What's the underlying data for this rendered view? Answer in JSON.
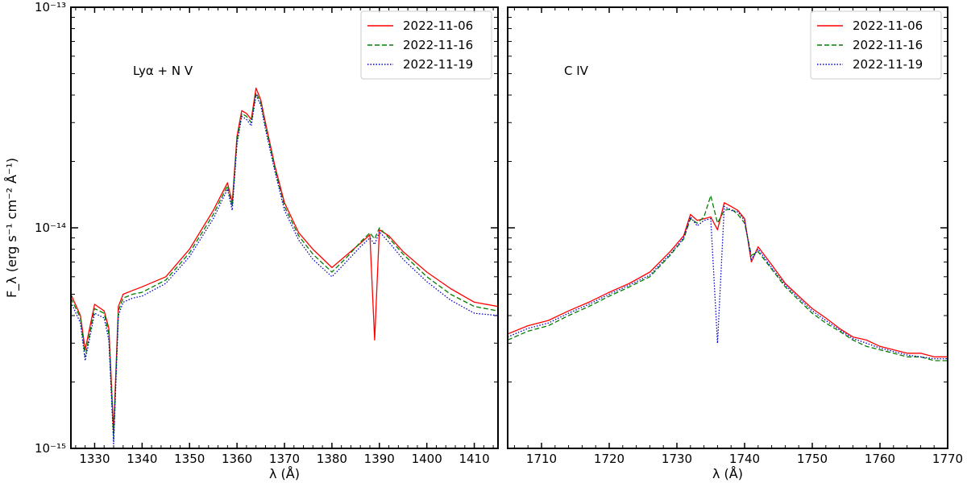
{
  "chart_data": [
    {
      "type": "line",
      "annotation": "Lyα + N V",
      "xlabel": "λ (Å)",
      "ylabel": "F_λ (erg s⁻¹ cm⁻² Å⁻¹)",
      "xlim": [
        1325,
        1415
      ],
      "ylim": [
        1e-15,
        1e-13
      ],
      "yscale": "log",
      "xticks": [
        1330,
        1340,
        1350,
        1360,
        1370,
        1380,
        1390,
        1400,
        1410
      ],
      "yticks": [
        1e-15,
        1e-14,
        1e-13
      ],
      "ytick_labels": [
        "10⁻¹⁵",
        "10⁻¹⁴",
        "10⁻¹³"
      ],
      "legend": "top-right",
      "series": [
        {
          "name": "2022-11-06",
          "color": "#ff0000",
          "style": "solid",
          "x": [
            1325,
            1327,
            1328,
            1330,
            1332,
            1333,
            1334,
            1335,
            1336,
            1338,
            1340,
            1345,
            1350,
            1355,
            1358,
            1359,
            1360,
            1361,
            1362,
            1363,
            1364,
            1365,
            1366,
            1368,
            1370,
            1373,
            1376,
            1380,
            1383,
            1386,
            1388,
            1389,
            1390,
            1392,
            1395,
            1400,
            1405,
            1410,
            1415
          ],
          "y": [
            5e-15,
            4e-15,
            2.8e-15,
            4.5e-15,
            4.2e-15,
            3.5e-15,
            1.2e-15,
            4.4e-15,
            5e-15,
            5.2e-15,
            5.4e-15,
            6e-15,
            8e-15,
            1.2e-14,
            1.6e-14,
            1.3e-14,
            2.6e-14,
            3.4e-14,
            3.3e-14,
            3.1e-14,
            4.3e-14,
            3.8e-14,
            3e-14,
            1.9e-14,
            1.3e-14,
            9.5e-15,
            8e-15,
            6.6e-15,
            7.5e-15,
            8.5e-15,
            9.3e-15,
            3.1e-15,
            9.8e-15,
            9.2e-15,
            7.8e-15,
            6.3e-15,
            5.3e-15,
            4.6e-15,
            4.4e-15
          ]
        },
        {
          "name": "2022-11-16",
          "color": "#008000",
          "style": "dashed",
          "x": [
            1325,
            1327,
            1328,
            1330,
            1332,
            1333,
            1334,
            1335,
            1336,
            1338,
            1340,
            1345,
            1350,
            1355,
            1358,
            1359,
            1360,
            1361,
            1362,
            1363,
            1364,
            1365,
            1366,
            1368,
            1370,
            1373,
            1376,
            1380,
            1383,
            1386,
            1388,
            1389,
            1390,
            1392,
            1395,
            1400,
            1405,
            1410,
            1415
          ],
          "y": [
            4.8e-15,
            3.9e-15,
            2.6e-15,
            4.3e-15,
            4.1e-15,
            3.3e-15,
            1.1e-15,
            4.2e-15,
            4.8e-15,
            5e-15,
            5.1e-15,
            5.8e-15,
            7.7e-15,
            1.15e-14,
            1.55e-14,
            1.25e-14,
            2.5e-14,
            3.3e-14,
            3.2e-14,
            3e-14,
            4.1e-14,
            3.7e-14,
            2.9e-14,
            1.85e-14,
            1.25e-14,
            9.2e-15,
            7.6e-15,
            6.3e-15,
            7.3e-15,
            8.6e-15,
            9.5e-15,
            8.9e-15,
            1e-14,
            9e-15,
            7.6e-15,
            6e-15,
            5e-15,
            4.4e-15,
            4.2e-15
          ]
        },
        {
          "name": "2022-11-19",
          "color": "#0000cc",
          "style": "dotted",
          "x": [
            1325,
            1327,
            1328,
            1330,
            1332,
            1333,
            1334,
            1335,
            1336,
            1338,
            1340,
            1345,
            1350,
            1355,
            1358,
            1359,
            1360,
            1361,
            1362,
            1363,
            1364,
            1365,
            1366,
            1368,
            1370,
            1373,
            1376,
            1380,
            1383,
            1386,
            1388,
            1389,
            1390,
            1392,
            1395,
            1400,
            1405,
            1410,
            1415
          ],
          "y": [
            4.6e-15,
            3.7e-15,
            2.5e-15,
            4.1e-15,
            3.9e-15,
            3.1e-15,
            1.05e-15,
            4e-15,
            4.6e-15,
            4.8e-15,
            4.9e-15,
            5.6e-15,
            7.4e-15,
            1.1e-14,
            1.5e-14,
            1.2e-14,
            2.4e-14,
            3.2e-14,
            3.1e-14,
            2.9e-14,
            4e-14,
            3.6e-14,
            2.8e-14,
            1.8e-14,
            1.2e-14,
            8.8e-15,
            7.2e-15,
            6e-15,
            7e-15,
            8.2e-15,
            9e-15,
            8.4e-15,
            9.6e-15,
            8.6e-15,
            7.2e-15,
            5.7e-15,
            4.7e-15,
            4.1e-15,
            4e-15
          ]
        }
      ]
    },
    {
      "type": "line",
      "annotation": "C IV",
      "xlabel": "λ (Å)",
      "xlim": [
        1705,
        1770
      ],
      "ylim": [
        1e-15,
        1e-13
      ],
      "yscale": "log",
      "xticks": [
        1710,
        1720,
        1730,
        1740,
        1750,
        1760,
        1770
      ],
      "legend": "top-right",
      "series": [
        {
          "name": "2022-11-06",
          "color": "#ff0000",
          "style": "solid",
          "x": [
            1705,
            1708,
            1711,
            1714,
            1717,
            1720,
            1723,
            1726,
            1729,
            1731,
            1732,
            1733,
            1734,
            1735,
            1736,
            1737,
            1738,
            1739,
            1740,
            1741,
            1742,
            1744,
            1746,
            1748,
            1750,
            1752,
            1754,
            1756,
            1758,
            1760,
            1762,
            1764,
            1766,
            1768,
            1770
          ],
          "y": [
            3.3e-15,
            3.6e-15,
            3.8e-15,
            4.2e-15,
            4.6e-15,
            5.1e-15,
            5.6e-15,
            6.3e-15,
            7.8e-15,
            9.2e-15,
            1.15e-14,
            1.08e-14,
            1.1e-14,
            1.12e-14,
            9.8e-15,
            1.3e-14,
            1.25e-14,
            1.2e-14,
            1.1e-14,
            7e-15,
            8.2e-15,
            6.8e-15,
            5.6e-15,
            4.9e-15,
            4.3e-15,
            3.9e-15,
            3.5e-15,
            3.2e-15,
            3.1e-15,
            2.9e-15,
            2.8e-15,
            2.7e-15,
            2.7e-15,
            2.6e-15,
            2.6e-15
          ]
        },
        {
          "name": "2022-11-16",
          "color": "#008000",
          "style": "dashed",
          "x": [
            1705,
            1708,
            1711,
            1714,
            1717,
            1720,
            1723,
            1726,
            1729,
            1731,
            1732,
            1733,
            1734,
            1735,
            1736,
            1737,
            1738,
            1739,
            1740,
            1741,
            1742,
            1744,
            1746,
            1748,
            1750,
            1752,
            1754,
            1756,
            1758,
            1760,
            1762,
            1764,
            1766,
            1768,
            1770
          ],
          "y": [
            3.1e-15,
            3.4e-15,
            3.6e-15,
            4e-15,
            4.4e-15,
            4.9e-15,
            5.4e-15,
            6e-15,
            7.5e-15,
            8.9e-15,
            1.1e-14,
            1.05e-14,
            1.12e-14,
            1.4e-14,
            1.05e-14,
            1.2e-14,
            1.22e-14,
            1.15e-14,
            1.05e-14,
            7.5e-15,
            7.8e-15,
            6.5e-15,
            5.4e-15,
            4.7e-15,
            4.1e-15,
            3.7e-15,
            3.4e-15,
            3.1e-15,
            2.9e-15,
            2.8e-15,
            2.7e-15,
            2.6e-15,
            2.6e-15,
            2.5e-15,
            2.5e-15
          ]
        },
        {
          "name": "2022-11-19",
          "color": "#0000cc",
          "style": "dotted",
          "x": [
            1705,
            1708,
            1711,
            1714,
            1717,
            1720,
            1723,
            1726,
            1729,
            1731,
            1732,
            1733,
            1734,
            1735,
            1736,
            1737,
            1738,
            1739,
            1740,
            1741,
            1742,
            1744,
            1746,
            1748,
            1750,
            1752,
            1754,
            1756,
            1758,
            1760,
            1762,
            1764,
            1766,
            1768,
            1770
          ],
          "y": [
            3.2e-15,
            3.5e-15,
            3.7e-15,
            4.1e-15,
            4.5e-15,
            5e-15,
            5.5e-15,
            6.1e-15,
            7.6e-15,
            9e-15,
            1.12e-14,
            1.02e-14,
            1.08e-14,
            1.1e-14,
            3e-15,
            1.25e-14,
            1.2e-14,
            1.18e-14,
            1.08e-14,
            7.2e-15,
            8e-15,
            6.6e-15,
            5.5e-15,
            4.8e-15,
            4.2e-15,
            3.8e-15,
            3.45e-15,
            3.15e-15,
            3e-15,
            2.85e-15,
            2.75e-15,
            2.65e-15,
            2.6e-15,
            2.55e-15,
            2.55e-15
          ]
        }
      ]
    }
  ]
}
